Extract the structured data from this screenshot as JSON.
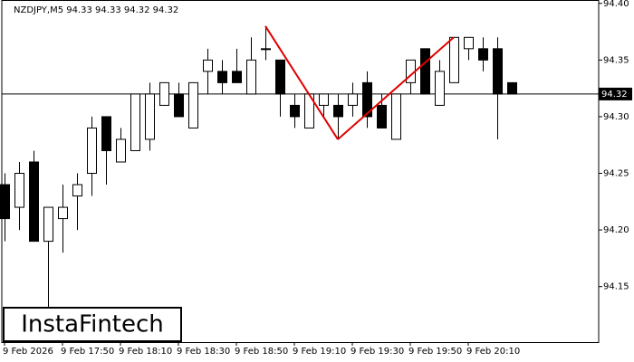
{
  "chart_data": {
    "type": "candlestick",
    "header": "NZDJPY,M5  94.33 94.33 94.32 94.32",
    "categories": [
      "9 Feb 2026",
      null,
      null,
      null,
      "9 Feb 17:50",
      null,
      null,
      null,
      "9 Feb 18:10",
      null,
      null,
      null,
      "9 Feb 18:30",
      null,
      null,
      null,
      "9 Feb 18:50",
      null,
      null,
      null,
      "9 Feb 19:10",
      null,
      null,
      null,
      "9 Feb 19:30",
      null,
      null,
      null,
      "9 Feb 19:50",
      null,
      null,
      null,
      "9 Feb 20:10",
      null,
      null,
      null
    ],
    "open": [
      94.24,
      94.22,
      94.26,
      94.19,
      94.21,
      94.23,
      94.25,
      94.3,
      94.26,
      94.27,
      94.28,
      94.31,
      94.32,
      94.29,
      94.34,
      94.34,
      94.34,
      94.32,
      94.36,
      94.35,
      94.31,
      94.29,
      94.31,
      94.31,
      94.31,
      94.33,
      94.31,
      94.28,
      94.33,
      94.36,
      94.31,
      94.33,
      94.36,
      94.36,
      94.36,
      94.33
    ],
    "high": [
      94.25,
      94.26,
      94.27,
      94.22,
      94.24,
      94.25,
      94.3,
      94.3,
      94.29,
      94.32,
      94.33,
      94.33,
      94.33,
      94.33,
      94.36,
      94.35,
      94.36,
      94.37,
      94.38,
      94.35,
      94.32,
      94.32,
      94.32,
      94.32,
      94.33,
      94.34,
      94.32,
      94.32,
      94.35,
      94.36,
      94.35,
      94.37,
      94.37,
      94.37,
      94.37,
      94.33
    ],
    "low": [
      94.19,
      94.2,
      94.19,
      94.13,
      94.18,
      94.2,
      94.23,
      94.24,
      94.26,
      94.27,
      94.27,
      94.31,
      94.3,
      94.29,
      94.32,
      94.32,
      94.33,
      94.32,
      94.35,
      94.3,
      94.29,
      94.29,
      94.3,
      94.28,
      94.3,
      94.29,
      94.29,
      94.28,
      94.32,
      94.32,
      94.31,
      94.33,
      94.35,
      94.34,
      94.28,
      94.32
    ],
    "close": [
      94.21,
      94.25,
      94.19,
      94.22,
      94.22,
      94.24,
      94.29,
      94.27,
      94.28,
      94.32,
      94.32,
      94.33,
      94.3,
      94.33,
      94.35,
      94.33,
      94.33,
      94.35,
      94.36,
      94.32,
      94.3,
      94.32,
      94.32,
      94.3,
      94.32,
      94.3,
      94.29,
      94.32,
      94.35,
      94.32,
      94.34,
      94.37,
      94.37,
      94.35,
      94.32,
      94.32
    ],
    "up_color": "#ffffff",
    "down_color": "#000000",
    "ylim": [
      94.101,
      94.403
    ],
    "yticks": [
      94.15,
      {
        "value": 94.2,
        "label": "94.20"
      },
      94.25,
      {
        "value": 94.3,
        "label": "94.30"
      },
      94.35,
      {
        "value": 94.4,
        "label": "94.40"
      }
    ],
    "current_price": 94.32,
    "pattern": {
      "color": "#e00000",
      "points": [
        {
          "index": 18,
          "value": 94.38
        },
        {
          "index": 23,
          "value": 94.28
        },
        {
          "index": 31,
          "value": 94.37
        }
      ]
    },
    "watermark": "InstaFintech"
  }
}
